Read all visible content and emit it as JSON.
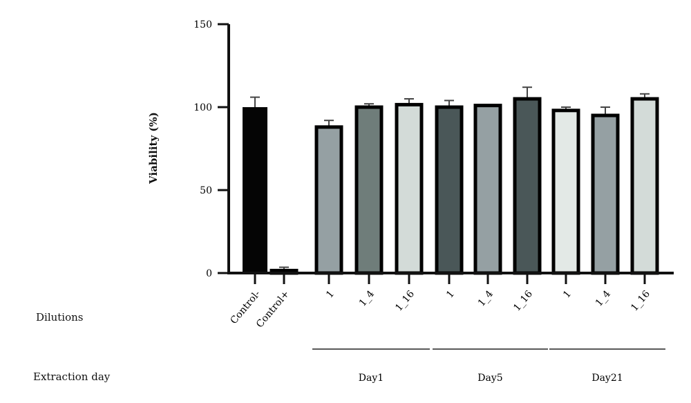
{
  "chart_data": {
    "type": "bar",
    "title": "",
    "ylabel": "Viability (%)",
    "xlabel": "",
    "ylim": [
      0,
      150
    ],
    "yticks": [
      0,
      50,
      100,
      150
    ],
    "grid": false,
    "categories": [
      "Control-",
      "Control+",
      "1",
      "1_4",
      "1_16",
      "1",
      "1_4",
      "1_16",
      "1",
      "1_4",
      "1_16"
    ],
    "values": [
      100,
      1.5,
      88,
      100,
      101.5,
      100,
      101,
      105,
      98,
      95,
      105
    ],
    "error_upper": [
      106,
      3.5,
      92,
      102,
      105,
      104,
      101.5,
      112,
      100,
      100,
      108
    ],
    "colors": [
      "#050505",
      "#ffffff",
      "#95a0a3",
      "#6f7d7a",
      "#d3dbd8",
      "#4a5758",
      "#95a0a3",
      "#4a5758",
      "#e3e9e6",
      "#95a0a3",
      "#d3dbd8"
    ],
    "row_labels": {
      "dilutions": "Dilutions",
      "extraction_day": "Extraction day"
    },
    "groups": [
      {
        "label": "Day1",
        "members": [
          2,
          3,
          4
        ]
      },
      {
        "label": "Day5",
        "members": [
          5,
          6,
          7
        ]
      },
      {
        "label": "Day21",
        "members": [
          8,
          9,
          10
        ]
      }
    ]
  }
}
